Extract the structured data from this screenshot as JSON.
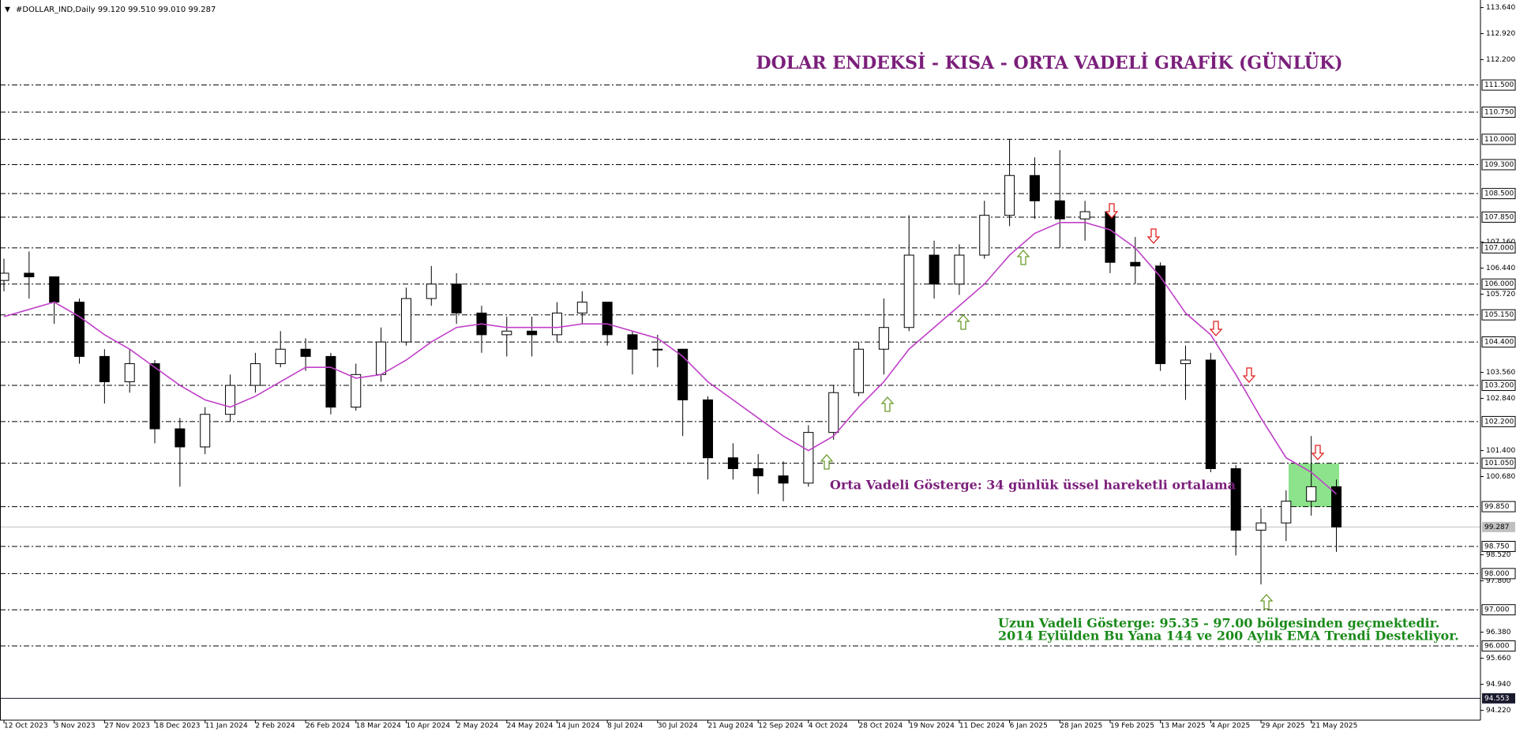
{
  "chart_data": {
    "type": "candlestick",
    "header": "#DOLLAR_IND,Daily  99.120 99.510 99.010 99.287",
    "title": "DOLAR ENDEKSİ - KISA - ORTA VADELİ GRAFİK (GÜNLÜK)",
    "annotations": [
      "Orta Vadeli Gösterge: 34 günlük üssel hareketli ortalama",
      "Uzun Vadeli Gösterge: 95.35 - 97.00 bölgesinden geçmektedir.",
      "2014 Eylülden Bu Yana 144 ve 200 Aylık EMA Trendi Destekliyor."
    ],
    "categories": [
      "12 Oct 2023",
      null,
      "3 Nov 2023",
      null,
      "27 Nov 2023",
      null,
      "18 Dec 2023",
      null,
      "11 Jan 2024",
      null,
      "2 Feb 2024",
      null,
      "26 Feb 2024",
      null,
      "18 Mar 2024",
      null,
      "10 Apr 2024",
      null,
      "2 May 2024",
      null,
      "24 May 2024",
      null,
      "14 Jun 2024",
      null,
      "8 Jul 2024",
      null,
      "30 Jul 2024",
      null,
      "21 Aug 2024",
      null,
      "12 Sep 2024",
      null,
      "4 Oct 2024",
      null,
      "28 Oct 2024",
      null,
      "19 Nov 2024",
      null,
      "11 Dec 2024",
      null,
      "6 Jan 2025",
      null,
      "28 Jan 2025",
      null,
      "19 Feb 2025",
      null,
      "13 Mar 2025",
      null,
      "4 Apr 2025",
      null,
      "29 Apr 2025",
      null,
      "21 May 2025",
      null
    ],
    "open": [
      106.1,
      106.3,
      106.2,
      105.5,
      104.0,
      103.3,
      103.8,
      102.0,
      101.5,
      102.4,
      103.2,
      103.8,
      104.2,
      104.0,
      102.6,
      103.5,
      104.4,
      105.6,
      106.0,
      105.2,
      104.6,
      104.7,
      104.6,
      105.2,
      105.5,
      104.6,
      104.2,
      104.2,
      102.8,
      101.2,
      100.9,
      100.7,
      100.5,
      101.9,
      103.0,
      104.2,
      104.8,
      106.8,
      106.0,
      106.8,
      107.9,
      109.0,
      108.3,
      107.8,
      108.0,
      106.6,
      106.5,
      103.8,
      103.9,
      100.9,
      99.2,
      99.4,
      100.0,
      100.4
    ],
    "high": [
      106.7,
      106.9,
      106.2,
      105.6,
      104.2,
      104.2,
      103.9,
      102.3,
      102.6,
      103.5,
      104.1,
      104.7,
      104.5,
      104.1,
      103.8,
      104.8,
      105.9,
      106.5,
      106.3,
      105.4,
      105.1,
      105.1,
      105.5,
      105.8,
      105.5,
      104.7,
      104.6,
      104.2,
      102.9,
      101.6,
      101.3,
      101.1,
      102.1,
      103.2,
      104.4,
      105.6,
      107.9,
      107.2,
      107.1,
      108.3,
      110.0,
      109.5,
      109.7,
      108.3,
      108.1,
      107.3,
      106.6,
      104.3,
      104.1,
      101.0,
      99.8,
      100.3,
      101.8,
      100.6
    ],
    "low": [
      105.8,
      105.6,
      104.9,
      103.8,
      102.7,
      103.0,
      101.6,
      100.4,
      101.3,
      102.2,
      103.0,
      103.7,
      103.6,
      102.4,
      102.5,
      103.3,
      104.3,
      105.4,
      104.9,
      104.1,
      104.0,
      104.0,
      104.4,
      104.9,
      104.3,
      103.5,
      103.7,
      101.8,
      100.6,
      100.6,
      100.2,
      100.0,
      100.4,
      101.7,
      102.9,
      103.5,
      104.7,
      105.6,
      105.7,
      106.7,
      107.6,
      107.8,
      107.0,
      107.2,
      106.3,
      106.0,
      103.6,
      102.8,
      100.8,
      98.5,
      97.7,
      98.9,
      99.6,
      98.6
    ],
    "close": [
      106.3,
      106.2,
      105.5,
      104.0,
      103.3,
      103.8,
      102.0,
      101.5,
      102.4,
      103.2,
      103.8,
      104.2,
      104.0,
      102.6,
      103.5,
      104.4,
      105.6,
      106.0,
      105.2,
      104.6,
      104.7,
      104.6,
      105.2,
      105.5,
      104.6,
      104.2,
      104.2,
      102.8,
      101.2,
      100.9,
      100.7,
      100.5,
      101.9,
      103.0,
      104.2,
      104.8,
      106.8,
      106.0,
      106.8,
      107.9,
      109.0,
      108.3,
      107.8,
      108.0,
      106.6,
      106.5,
      103.8,
      103.9,
      100.9,
      99.2,
      99.4,
      100.0,
      100.4,
      99.287
    ],
    "ema": {
      "color": "#c040c8",
      "values": [
        105.1,
        105.3,
        105.5,
        105.1,
        104.6,
        104.2,
        103.7,
        103.2,
        102.8,
        102.6,
        102.9,
        103.3,
        103.7,
        103.7,
        103.4,
        103.5,
        103.9,
        104.4,
        104.8,
        104.9,
        104.8,
        104.8,
        104.8,
        104.9,
        104.9,
        104.7,
        104.5,
        104.0,
        103.3,
        102.8,
        102.3,
        101.8,
        101.4,
        101.8,
        102.6,
        103.3,
        104.2,
        104.8,
        105.4,
        106.0,
        106.8,
        107.4,
        107.7,
        107.7,
        107.5,
        107.0,
        106.2,
        105.2,
        104.6,
        103.5,
        102.3,
        101.2,
        100.8,
        100.2
      ]
    },
    "ylim": [
      93.95,
      113.74
    ],
    "yticks": [
      {
        "value": 113.64,
        "label": "113.640"
      },
      {
        "value": 112.92,
        "label": "112.920"
      },
      {
        "value": 112.2,
        "label": "112.200"
      },
      {
        "value": 107.16,
        "label": "107.160"
      },
      {
        "value": 106.44,
        "label": "106.440"
      },
      {
        "value": 105.72,
        "label": "105.720"
      },
      {
        "value": 103.56,
        "label": "103.560"
      },
      {
        "value": 102.84,
        "label": "102.840"
      },
      {
        "value": 101.4,
        "label": "101.400"
      },
      {
        "value": 100.68,
        "label": "100.680"
      },
      {
        "value": 98.52,
        "label": "98.520"
      },
      {
        "value": 97.8,
        "label": "97.800"
      },
      {
        "value": 96.38,
        "label": "96.380"
      },
      {
        "value": 95.66,
        "label": "95.660"
      },
      {
        "value": 94.94,
        "label": "94.940"
      },
      {
        "value": 94.22,
        "label": "94.220"
      }
    ],
    "levels": [
      {
        "value": 111.5,
        "label": "111.500"
      },
      {
        "value": 110.75,
        "label": "110.750"
      },
      {
        "value": 110.0,
        "label": "110.000"
      },
      {
        "value": 109.3,
        "label": "109.300"
      },
      {
        "value": 108.5,
        "label": "108.500"
      },
      {
        "value": 107.85,
        "label": "107.850"
      },
      {
        "value": 107.0,
        "label": "107.000"
      },
      {
        "value": 106.0,
        "label": "106.000"
      },
      {
        "value": 105.15,
        "label": "105.150"
      },
      {
        "value": 104.4,
        "label": "104.400"
      },
      {
        "value": 103.2,
        "label": "103.200"
      },
      {
        "value": 102.2,
        "label": "102.200"
      },
      {
        "value": 101.05,
        "label": "101.050"
      },
      {
        "value": 99.85,
        "label": "99.850"
      },
      {
        "value": 98.75,
        "label": "98.750"
      },
      {
        "value": 98.0,
        "label": "98.000"
      },
      {
        "value": 97.0,
        "label": "97.000"
      },
      {
        "value": 96.0,
        "label": "96.000"
      }
    ],
    "price_lines": [
      {
        "value": 99.287,
        "label": "99.287",
        "color": "#c0c0c0"
      },
      {
        "value": 94.553,
        "label": "94.553",
        "color": "#1a1a2e"
      }
    ]
  }
}
